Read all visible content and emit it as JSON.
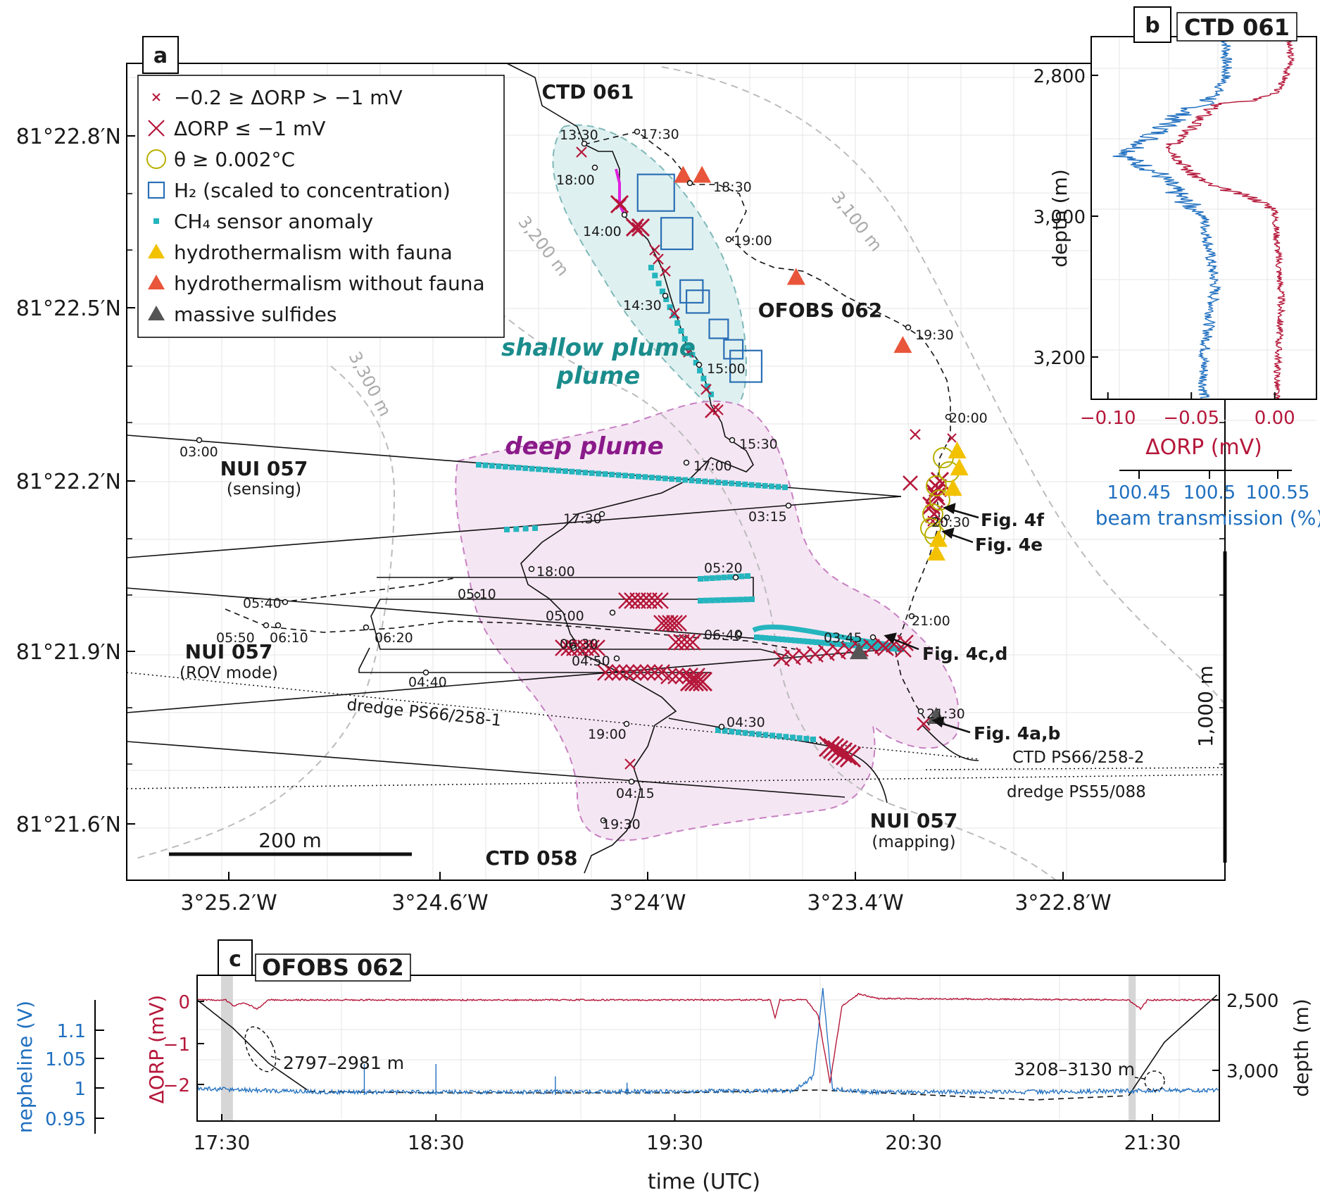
{
  "panel_labels": {
    "a": "a",
    "b": "b",
    "c": "c"
  },
  "panel_titles": {
    "b": "CTD 061",
    "c": "OFOBS 062"
  },
  "colors": {
    "orp": "#b5173a",
    "beam": "#1f6fbf",
    "ch4": "#25b5be",
    "h2": "#2a6fb5",
    "fauna": "#f2c200",
    "nofauna": "#e8553a",
    "sulfide": "#555555",
    "theta": "#b8b000",
    "shallow_plume": "#dff0f0",
    "deep_plume": "#f5e6f3",
    "shallow_text": "#1b8c8c",
    "deep_text": "#8a1a8a",
    "contour": "#bcbcbc",
    "h2track": "#e020e0"
  },
  "legend": [
    {
      "icon": "small-x-icon",
      "label": "−0.2 ≥ ΔORP > −1 mV"
    },
    {
      "icon": "large-x-icon",
      "label": "ΔORP ≤ −1 mV"
    },
    {
      "icon": "circle-icon",
      "label": "θ ≥ 0.002°C"
    },
    {
      "icon": "square-icon",
      "label": "H₂ (scaled to concentration)"
    },
    {
      "icon": "small-square-icon",
      "label": "CH₄ sensor anomaly"
    },
    {
      "icon": "triangle-icon",
      "label": "hydrothermalism with fauna"
    },
    {
      "icon": "triangle-icon",
      "label": "hydrothermalism without fauna"
    },
    {
      "icon": "triangle-icon",
      "label": "massive sulfides"
    }
  ],
  "chart_data": [
    {
      "panel": "a",
      "type": "scatter",
      "title": "",
      "xticks": [
        "3°25.2′W",
        "3°24.6′W",
        "3°24′W",
        "3°23.4′W",
        "3°22.8′W"
      ],
      "yticks": [
        "81°22.8′N",
        "81°22.5′N",
        "81°22.2′N",
        "81°21.9′N",
        "81°21.6′N"
      ],
      "xlim": [
        -3.4275,
        -3.375
      ],
      "ylim": [
        81.3585,
        81.3825
      ],
      "scale_bars": {
        "horizontal": "200 m",
        "vertical": "1,000 m"
      },
      "region_labels": {
        "shallow": "shallow\nplume",
        "deep": "deep plume"
      },
      "contour_labels": [
        "3,100 m",
        "3,200 m",
        "3,300 m"
      ],
      "track_labels": {
        "ctd061": "CTD 061",
        "ofobs062": "OFOBS 062",
        "ctd058": "CTD 058",
        "nui_sensing": "NUI 057",
        "nui_sensing_sub": "(sensing)",
        "nui_rov": "NUI 057",
        "nui_rov_sub": "(ROV mode)",
        "nui_map": "NUI 057",
        "nui_map_sub": "(mapping)",
        "dredge1": "dredge PS66/258-1",
        "ctd_ps66": "CTD PS66/258-2",
        "dredge2": "dredge PS55/088"
      },
      "figure_refs": [
        "Fig. 4f",
        "Fig. 4e",
        "Fig. 4c,d",
        "Fig. 4a,b"
      ],
      "time_labels": [
        "13:30",
        "17:30",
        "18:00",
        "18:30",
        "14:00",
        "19:00",
        "14:30",
        "19:30",
        "15:00",
        "20:00",
        "15:30",
        "17:00",
        "03:00",
        "03:15",
        "20:30",
        "17:30",
        "18:00",
        "05:20",
        "05:10",
        "05:40",
        "05:00",
        "21:00",
        "05:50",
        "06:10",
        "06:40",
        "03:45",
        "06:20",
        "06:30",
        "04:50",
        "04:40",
        "21:30",
        "04:30",
        "19:00",
        "04:15",
        "19:30"
      ],
      "h2_squares": [
        {
          "x": -3.4022,
          "y": 81.3787,
          "size": 1.0
        },
        {
          "x": -3.4012,
          "y": 81.3775,
          "size": 0.8
        },
        {
          "x": -3.4005,
          "y": 81.3758,
          "size": 0.45
        },
        {
          "x": -3.4002,
          "y": 81.3755,
          "size": 0.45
        },
        {
          "x": -3.3992,
          "y": 81.3747,
          "size": 0.3
        },
        {
          "x": -3.3985,
          "y": 81.3741,
          "size": 0.3
        },
        {
          "x": -3.3979,
          "y": 81.3736,
          "size": 0.8
        }
      ],
      "triangles_nofauna": [
        {
          "x": -3.4009,
          "y": 81.3792
        },
        {
          "x": -3.4,
          "y": 81.3792
        },
        {
          "x": -3.3955,
          "y": 81.3762
        },
        {
          "x": -3.3904,
          "y": 81.3742
        }
      ],
      "triangles_fauna": [
        {
          "x": -3.3878,
          "y": 81.3711
        },
        {
          "x": -3.3877,
          "y": 81.3706
        },
        {
          "x": -3.388,
          "y": 81.37
        },
        {
          "x": -3.3887,
          "y": 81.3685
        },
        {
          "x": -3.3888,
          "y": 81.3681
        }
      ],
      "triangles_sulfide": [
        {
          "x": -3.3925,
          "y": 81.3652
        },
        {
          "x": -3.3888,
          "y": 81.3633
        }
      ]
    },
    {
      "panel": "b",
      "type": "line",
      "ylabel": "depth (m)",
      "ylim": [
        3260,
        2745
      ],
      "yticks": [
        "2,800",
        "3,000",
        "3,200"
      ],
      "series": [
        {
          "name": "ΔORP (mV)",
          "xlim": [
            -0.11,
            0.025
          ],
          "xticks": [
            "−0.10",
            "−0.05",
            "0.00"
          ],
          "points": [
            [
              0.008,
              2750
            ],
            [
              0.01,
              2780
            ],
            [
              0.005,
              2810
            ],
            [
              0.0,
              2825
            ],
            [
              -0.01,
              2835
            ],
            [
              -0.035,
              2840
            ],
            [
              -0.048,
              2870
            ],
            [
              -0.062,
              2900
            ],
            [
              -0.052,
              2935
            ],
            [
              -0.04,
              2955
            ],
            [
              -0.012,
              2975
            ],
            [
              0.0,
              2990
            ],
            [
              0.002,
              3050
            ],
            [
              0.004,
              3120
            ],
            [
              0.002,
              3200
            ],
            [
              0.001,
              3260
            ]
          ]
        },
        {
          "name": "beam transmission (%)",
          "xlim": [
            100.38,
            100.58
          ],
          "xticks": [
            "100.45",
            "100.5",
            "100.55"
          ],
          "points": [
            [
              100.5,
              2750
            ],
            [
              100.5,
              2800
            ],
            [
              100.49,
              2830
            ],
            [
              100.46,
              2855
            ],
            [
              100.44,
              2880
            ],
            [
              100.41,
              2915
            ],
            [
              100.44,
              2940
            ],
            [
              100.46,
              2975
            ],
            [
              100.48,
              3000
            ],
            [
              100.49,
              3100
            ],
            [
              100.48,
              3200
            ],
            [
              100.48,
              3260
            ]
          ]
        }
      ]
    },
    {
      "panel": "c",
      "type": "line",
      "xlabel": "time (UTC)",
      "xticks": [
        "17:30",
        "18:30",
        "19:30",
        "20:30",
        "21:30"
      ],
      "y_left_orp": {
        "label": "ΔORP (mV)",
        "ticks": [
          "0",
          "−1",
          "−2"
        ]
      },
      "y_left_neph": {
        "label": "nepheline (V)",
        "ticks": [
          "1.1",
          "1.05",
          "1",
          "0.95"
        ]
      },
      "y_right_depth": {
        "label": "depth (m)",
        "ticks": [
          "2,500",
          "3,000"
        ]
      },
      "annotations": [
        "2797–2981 m",
        "3208–3130 m"
      ],
      "depth_points": [
        [
          17.5,
          2500
        ],
        [
          17.65,
          2700
        ],
        [
          17.8,
          2950
        ],
        [
          17.97,
          3150
        ],
        [
          18.5,
          3160
        ],
        [
          19.5,
          3160
        ],
        [
          20.1,
          3140
        ],
        [
          20.5,
          3170
        ],
        [
          21.0,
          3210
        ],
        [
          21.4,
          3180
        ],
        [
          21.55,
          2800
        ],
        [
          21.78,
          2450
        ]
      ],
      "orp_points": [
        [
          17.5,
          0.0
        ],
        [
          17.62,
          0.0
        ],
        [
          17.65,
          -0.2
        ],
        [
          17.7,
          -0.1
        ],
        [
          17.75,
          -0.3
        ],
        [
          17.8,
          0.0
        ],
        [
          19.9,
          0.0
        ],
        [
          19.92,
          -0.6
        ],
        [
          19.94,
          0.0
        ],
        [
          20.05,
          0.0
        ],
        [
          20.1,
          -0.5
        ],
        [
          20.15,
          -2.8
        ],
        [
          20.2,
          -0.2
        ],
        [
          20.27,
          0.2
        ],
        [
          20.35,
          0.05
        ],
        [
          21.4,
          0.0
        ],
        [
          21.45,
          -0.3
        ],
        [
          21.48,
          0.0
        ],
        [
          21.78,
          0.0
        ]
      ],
      "neph_points": [
        [
          17.5,
          0.96
        ],
        [
          18.0,
          0.955
        ],
        [
          19.0,
          0.955
        ],
        [
          20.0,
          0.957
        ],
        [
          20.08,
          0.98
        ],
        [
          20.12,
          1.12
        ],
        [
          20.16,
          0.96
        ],
        [
          20.3,
          0.955
        ],
        [
          21.0,
          0.955
        ],
        [
          21.78,
          0.958
        ]
      ]
    }
  ]
}
